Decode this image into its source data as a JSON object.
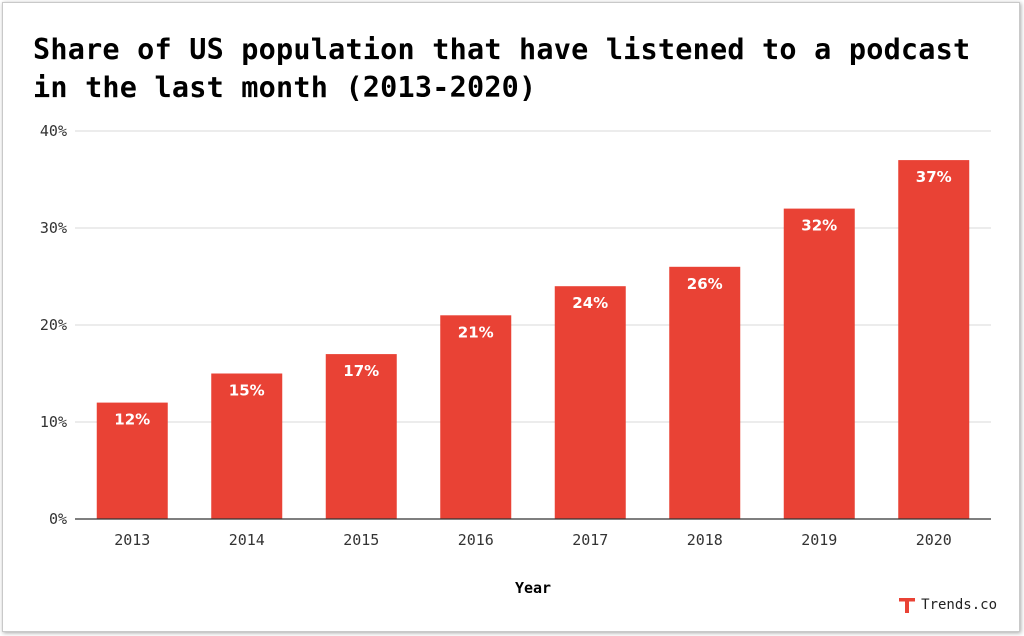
{
  "chart_data": {
    "type": "bar",
    "title": "Share of US population that have listened to a podcast in the last month (2013-2020)",
    "xlabel": "Year",
    "ylabel": "",
    "categories": [
      "2013",
      "2014",
      "2015",
      "2016",
      "2017",
      "2018",
      "2019",
      "2020"
    ],
    "values": [
      12,
      15,
      17,
      21,
      24,
      26,
      32,
      37
    ],
    "data_labels": [
      "12%",
      "15%",
      "17%",
      "21%",
      "24%",
      "26%",
      "32%",
      "37%"
    ],
    "ylim": [
      0,
      40
    ],
    "yticks": [
      0,
      10,
      20,
      30,
      40
    ],
    "ytick_labels": [
      "0%",
      "10%",
      "20%",
      "30%",
      "40%"
    ],
    "grid": true,
    "legend": "none",
    "bar_color": "#E94235"
  },
  "brand": {
    "name": "Trends.co",
    "color": "#E94235",
    "icon": "trends-logo-icon"
  }
}
